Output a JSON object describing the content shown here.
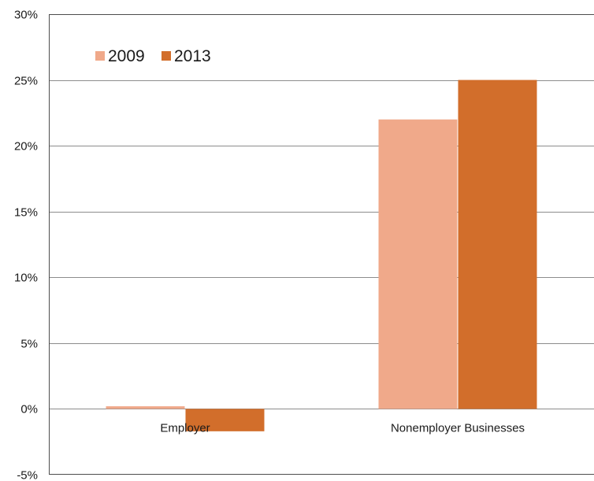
{
  "chart_data": {
    "type": "bar",
    "categories": [
      "Employer",
      "Nonemployer Businesses"
    ],
    "series": [
      {
        "name": "2009",
        "values": [
          0.2,
          22.0
        ],
        "color": "#f0a98a"
      },
      {
        "name": "2013",
        "values": [
          -1.7,
          25.0
        ],
        "color": "#d26e2b"
      }
    ],
    "ylim": [
      -5,
      30
    ],
    "yticks": [
      {
        "value": -5,
        "label": "-5%"
      },
      {
        "value": 0,
        "label": "0%"
      },
      {
        "value": 5,
        "label": "5%"
      },
      {
        "value": 10,
        "label": "10%"
      },
      {
        "value": 15,
        "label": "15%"
      },
      {
        "value": 20,
        "label": "20%"
      },
      {
        "value": 25,
        "label": "25%"
      },
      {
        "value": 30,
        "label": "30%"
      }
    ],
    "title": "",
    "xlabel": "",
    "ylabel": "",
    "grid": true,
    "legend_position": "top-left"
  }
}
